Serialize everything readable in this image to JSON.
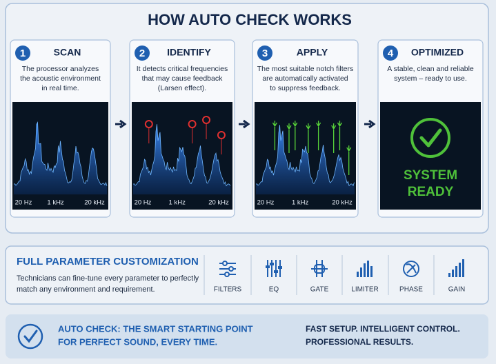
{
  "header": {
    "title": "HOW AUTO CHECK WORKS"
  },
  "steps": [
    {
      "number": "1",
      "title": "SCAN",
      "description": [
        "The processor analyzes",
        "the acoustic environment",
        "in real time."
      ],
      "axis_labels": [
        "20 Hz",
        "1 kHz",
        "20 kHz"
      ]
    },
    {
      "number": "2",
      "title": "IDENTIFY",
      "description": [
        "It detects critical frequencies",
        "that may cause feedback",
        "(Larsen effect)."
      ],
      "axis_labels": [
        "20 Hz",
        "1 kHz",
        "20 kHz"
      ]
    },
    {
      "number": "3",
      "title": "APPLY",
      "description": [
        "The most suitable notch filters",
        "are automatically activated",
        "to suppress feedback."
      ],
      "axis_labels": [
        "20 Hz",
        "1 kHz",
        "20 kHz"
      ]
    },
    {
      "number": "4",
      "title": "OPTIMIZED",
      "description": [
        "A stable, clean and reliable",
        "system – ready to use."
      ],
      "status": [
        "SYSTEM",
        "READY"
      ]
    }
  ],
  "customization": {
    "title": "FULL PARAMETER CUSTOMIZATION",
    "description": [
      "Technicians can fine-tune every parameter to perfectly",
      "match any environment and requirement."
    ],
    "tools": [
      "FILTERS",
      "EQ",
      "GATE",
      "LIMITER",
      "PHASE",
      "GAIN"
    ]
  },
  "footer": {
    "tagline": [
      "AUTO CHECK: THE SMART STARTING POINT",
      "FOR PERFECT SOUND, EVERY TIME."
    ],
    "note": [
      "FAST SETUP. INTELLIGENT CONTROL.",
      "PROFESSIONAL RESULTS."
    ]
  }
}
